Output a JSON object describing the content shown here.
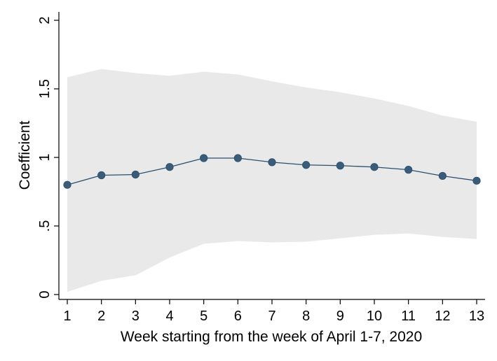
{
  "chart_data": {
    "type": "line",
    "title": "",
    "xlabel": "Week starting from the week of April 1-7, 2020",
    "ylabel": "Coefficient",
    "x": [
      1,
      2,
      3,
      4,
      5,
      6,
      7,
      8,
      9,
      10,
      11,
      12,
      13
    ],
    "series": [
      {
        "values": [
          0.8,
          0.87,
          0.875,
          0.93,
          0.995,
          0.995,
          0.965,
          0.945,
          0.94,
          0.93,
          0.91,
          0.865,
          0.83
        ]
      }
    ],
    "confidence_band": {
      "lower": [
        0.02,
        0.1,
        0.14,
        0.27,
        0.37,
        0.39,
        0.38,
        0.385,
        0.41,
        0.435,
        0.445,
        0.42,
        0.405
      ],
      "upper": [
        1.585,
        1.645,
        1.615,
        1.595,
        1.625,
        1.605,
        1.555,
        1.51,
        1.475,
        1.43,
        1.375,
        1.305,
        1.26
      ]
    },
    "xticks": [
      "1",
      "2",
      "3",
      "4",
      "5",
      "6",
      "7",
      "8",
      "9",
      "10",
      "11",
      "12",
      "13"
    ],
    "yticks": [
      0,
      0.5,
      1,
      1.5,
      2
    ],
    "ytick_labels": [
      "0",
      ".5",
      "1",
      "1.5",
      "2"
    ],
    "xlim": [
      1,
      13
    ],
    "ylim": [
      0,
      2
    ],
    "grid": false,
    "legend": "none",
    "colors": {
      "line": "#2a4f6e",
      "marker": "#3b5c78",
      "band": "#e9e9e9",
      "axis": "#000000"
    }
  }
}
